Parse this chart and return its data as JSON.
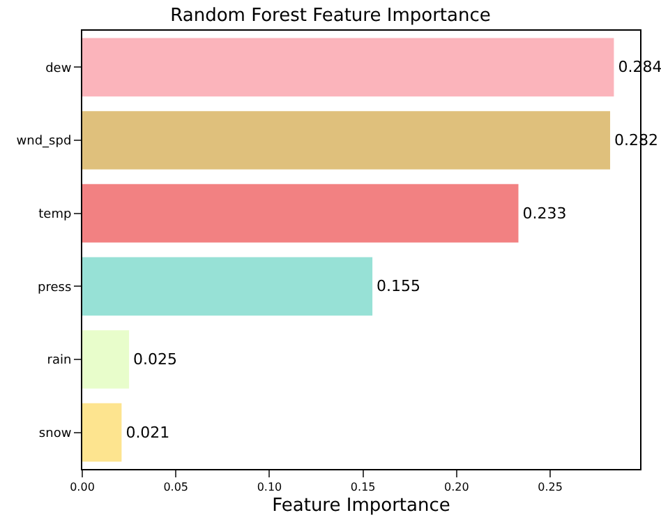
{
  "chart_data": {
    "type": "bar",
    "orientation": "horizontal",
    "title": "Random Forest Feature Importance",
    "xlabel": "Feature Importance",
    "categories": [
      "dew",
      "wnd_spd",
      "temp",
      "press",
      "rain",
      "snow"
    ],
    "values": [
      0.284,
      0.282,
      0.233,
      0.155,
      0.025,
      0.021
    ],
    "colors": [
      "#fbb4bb",
      "#dfc07c",
      "#f28182",
      "#97e1d6",
      "#e8fdcb",
      "#fde48f"
    ],
    "data_labels": true,
    "xlim": [
      0,
      0.298
    ],
    "xticks": [
      {
        "value": 0,
        "label": "0.00"
      },
      {
        "value": 0.05,
        "label": "0.05"
      },
      {
        "value": 0.1,
        "label": "0.10"
      },
      {
        "value": 0.15,
        "label": "0.15"
      },
      {
        "value": 0.2,
        "label": "0.20"
      },
      {
        "value": 0.25,
        "label": "0.25"
      }
    ]
  }
}
